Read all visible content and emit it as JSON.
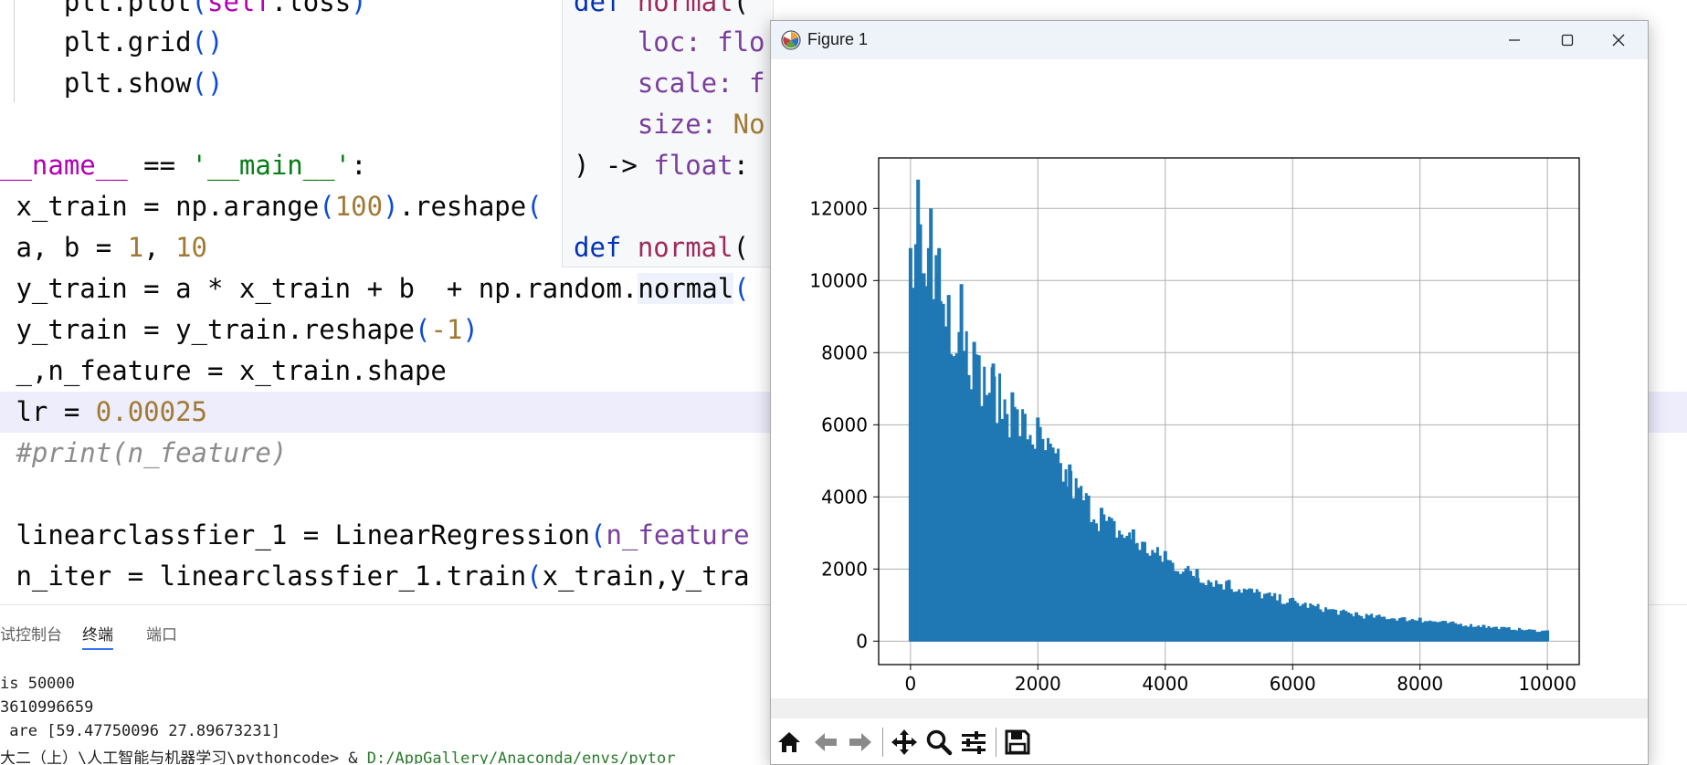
{
  "editor": {
    "lines": [
      {
        "id": "l1",
        "top": -20,
        "indent": "    ",
        "tokens": [
          {
            "t": "plt",
            "c": "t-norm"
          },
          {
            "t": ".",
            "c": "t-norm"
          },
          {
            "t": "plot",
            "c": "t-norm"
          },
          {
            "t": "(",
            "c": "t-par"
          },
          {
            "t": "self",
            "c": "t-dund"
          },
          {
            "t": ".loss",
            "c": "t-norm"
          },
          {
            "t": ")",
            "c": "t-par"
          }
        ]
      },
      {
        "id": "l2",
        "top": 24,
        "indent": "    ",
        "tokens": [
          {
            "t": "plt",
            "c": "t-norm"
          },
          {
            "t": ".",
            "c": "t-norm"
          },
          {
            "t": "grid",
            "c": "t-norm"
          },
          {
            "t": "()",
            "c": "t-par"
          }
        ]
      },
      {
        "id": "l3",
        "top": 69,
        "indent": "    ",
        "tokens": [
          {
            "t": "plt",
            "c": "t-norm"
          },
          {
            "t": ".",
            "c": "t-norm"
          },
          {
            "t": "show",
            "c": "t-norm"
          },
          {
            "t": "()",
            "c": "t-par"
          }
        ]
      },
      {
        "id": "l4",
        "top": 159,
        "indent": "",
        "tokens": [
          {
            "t": "__name__",
            "c": "t-dund"
          },
          {
            "t": " == ",
            "c": "t-norm"
          },
          {
            "t": "'__main__'",
            "c": "t-str"
          },
          {
            "t": ":",
            "c": "t-norm"
          }
        ]
      },
      {
        "id": "l5",
        "top": 204,
        "indent": " ",
        "tokens": [
          {
            "t": "x_train = np.",
            "c": "t-norm"
          },
          {
            "t": "arange",
            "c": "t-norm"
          },
          {
            "t": "(",
            "c": "t-par"
          },
          {
            "t": "100",
            "c": "t-num2"
          },
          {
            "t": ")",
            "c": "t-par"
          },
          {
            "t": ".reshape",
            "c": "t-norm"
          },
          {
            "t": "(",
            "c": "t-par"
          }
        ]
      },
      {
        "id": "l6",
        "top": 249,
        "indent": " ",
        "tokens": [
          {
            "t": "a, b = ",
            "c": "t-norm"
          },
          {
            "t": "1",
            "c": "t-num2"
          },
          {
            "t": ", ",
            "c": "t-norm"
          },
          {
            "t": "10",
            "c": "t-num2"
          }
        ]
      },
      {
        "id": "l7",
        "top": 294,
        "indent": " ",
        "tokens": [
          {
            "t": "y_train = a * x_train + b  + np.random.",
            "c": "t-norm"
          },
          {
            "t": "normal",
            "c": "t-norm t-call-hl"
          },
          {
            "t": "(",
            "c": "t-par"
          }
        ]
      },
      {
        "id": "l8",
        "top": 339,
        "indent": " ",
        "tokens": [
          {
            "t": "y_train = y_train.reshape",
            "c": "t-norm"
          },
          {
            "t": "(",
            "c": "t-par"
          },
          {
            "t": "-1",
            "c": "t-num2"
          },
          {
            "t": ")",
            "c": "t-par"
          }
        ]
      },
      {
        "id": "l9",
        "top": 384,
        "indent": " ",
        "tokens": [
          {
            "t": "_,n_feature = x_train.shape",
            "c": "t-norm"
          }
        ]
      },
      {
        "id": "l10",
        "top": 429,
        "indent": " ",
        "hl": true,
        "tokens": [
          {
            "t": "lr = ",
            "c": "t-norm"
          },
          {
            "t": "0.00025",
            "c": "t-num2"
          }
        ]
      },
      {
        "id": "l11",
        "top": 474,
        "indent": " ",
        "tokens": [
          {
            "t": "#print(n_feature)",
            "c": "t-comment"
          }
        ]
      },
      {
        "id": "l12",
        "top": 564,
        "indent": " ",
        "tokens": [
          {
            "t": "linearclassfier_1 = LinearRegression",
            "c": "t-norm"
          },
          {
            "t": "(",
            "c": "t-par"
          },
          {
            "t": "n_feature",
            "c": "t-param"
          }
        ]
      },
      {
        "id": "l13",
        "top": 609,
        "indent": " ",
        "tokens": [
          {
            "t": "n_iter = linearclassfier_1.train",
            "c": "t-norm"
          },
          {
            "t": "(",
            "c": "t-par"
          },
          {
            "t": "x_train,y_tra",
            "c": "t-norm"
          }
        ]
      }
    ]
  },
  "popup": {
    "lines": [
      {
        "top": -20,
        "tokens": [
          {
            "t": "def ",
            "c": "t-kw"
          },
          {
            "t": "normal",
            "c": "t-fn"
          },
          {
            "t": "(",
            "c": "t-norm"
          }
        ]
      },
      {
        "top": 24,
        "tokens": [
          {
            "t": "    loc: ",
            "c": "t-param"
          },
          {
            "t": "flo",
            "c": "t-param"
          }
        ]
      },
      {
        "top": 69,
        "tokens": [
          {
            "t": "    scale: ",
            "c": "t-param"
          },
          {
            "t": "f",
            "c": "t-param"
          }
        ]
      },
      {
        "top": 114,
        "tokens": [
          {
            "t": "    size: ",
            "c": "t-param"
          },
          {
            "t": "No",
            "c": "t-num2"
          }
        ]
      },
      {
        "top": 159,
        "tokens": [
          {
            "t": ") -> ",
            "c": "t-norm"
          },
          {
            "t": "float",
            "c": "t-param"
          },
          {
            "t": ":",
            "c": "t-norm"
          }
        ]
      },
      {
        "top": 249,
        "tokens": [
          {
            "t": "def ",
            "c": "t-kw"
          },
          {
            "t": "normal",
            "c": "t-fn"
          },
          {
            "t": "(",
            "c": "t-norm"
          }
        ]
      }
    ]
  },
  "terminal": {
    "tabs": [
      {
        "label": "试控制台",
        "active": false
      },
      {
        "label": "终端",
        "active": true
      },
      {
        "label": "端口",
        "active": false
      }
    ],
    "lines": [
      "is 50000",
      "3610996659",
      " are [59.47750096 27.89673231]"
    ],
    "prompt_prefix": "大二（上）\\人工智能与机器学习\\pythoncode> & ",
    "prompt_path": "D:/AppGallery/Anaconda/envs/pytor"
  },
  "figure": {
    "title": "Figure 1",
    "icons": {
      "app": "matplotlib-icon",
      "minimize": "minimize-icon",
      "maximize": "maximize-icon",
      "close": "close-icon"
    },
    "toolbar": [
      "home-icon",
      "back-icon",
      "forward-icon",
      "pan-icon",
      "zoom-icon",
      "configure-icon",
      "save-icon"
    ]
  },
  "chart_data": {
    "type": "line",
    "title": "",
    "xlabel": "",
    "ylabel": "",
    "xlim": [
      -500,
      10500
    ],
    "ylim": [
      -650,
      13400
    ],
    "x_ticks": [
      0,
      2000,
      4000,
      6000,
      8000,
      10000
    ],
    "y_ticks": [
      0,
      2000,
      4000,
      6000,
      8000,
      10000,
      12000
    ],
    "grid": true,
    "color": "#1f77b4",
    "series": [
      {
        "x": [
          0,
          50,
          120,
          210,
          320,
          450,
          600,
          800,
          1000,
          1300,
          1600,
          2000,
          2500,
          3000,
          3500,
          4000,
          4500,
          5000,
          6000,
          7000,
          8000,
          9000,
          10000
        ],
        "y": [
          10900,
          9800,
          12800,
          10200,
          12000,
          10900,
          9600,
          9900,
          8300,
          7700,
          6900,
          6200,
          4900,
          3700,
          3100,
          2500,
          2000,
          1700,
          1200,
          800,
          650,
          450,
          300
        ]
      }
    ]
  }
}
